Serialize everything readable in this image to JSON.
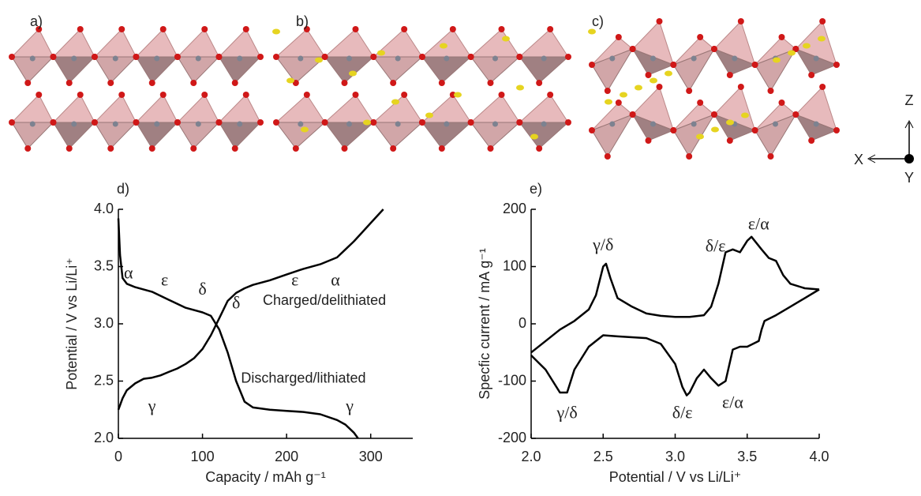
{
  "structure_panels": {
    "labels": [
      "a)",
      "b)",
      "c)"
    ],
    "axis_labels": [
      "Z",
      "X",
      "Y"
    ]
  },
  "chart_data": [
    {
      "type": "line",
      "label": "d)",
      "xlabel": "Capacity / mAh g⁻¹",
      "ylabel": "Potential / V vs Li/Li⁺",
      "xlim": [
        0,
        350
      ],
      "xticks": [
        0,
        100,
        200,
        300
      ],
      "ylim": [
        2,
        4
      ],
      "yticks": [
        {
          "value": 2,
          "label": "2.0"
        },
        {
          "value": 2.5,
          "label": "2.5"
        },
        {
          "value": 3,
          "label": "3.0"
        },
        {
          "value": 3.5,
          "label": "3.5"
        },
        {
          "value": 4,
          "label": "4.0"
        }
      ],
      "series": [
        {
          "color": "#000000",
          "x": [
            0,
            5,
            10,
            20,
            30,
            40,
            50,
            60,
            70,
            80,
            90,
            100,
            110,
            120,
            130,
            140,
            150,
            160,
            180,
            200,
            220,
            240,
            260,
            270,
            280,
            290,
            300,
            315
          ],
          "values": [
            2.25,
            2.35,
            2.42,
            2.48,
            2.52,
            2.53,
            2.55,
            2.58,
            2.61,
            2.65,
            2.7,
            2.78,
            2.9,
            3.05,
            3.2,
            3.27,
            3.31,
            3.34,
            3.38,
            3.43,
            3.48,
            3.52,
            3.58,
            3.65,
            3.72,
            3.8,
            3.88,
            4.0
          ]
        },
        {
          "color": "#000000",
          "x": [
            0,
            2,
            5,
            10,
            20,
            40,
            60,
            80,
            100,
            110,
            120,
            130,
            140,
            150,
            160,
            180,
            200,
            220,
            240,
            260,
            270,
            280,
            285
          ],
          "values": [
            3.92,
            3.6,
            3.4,
            3.35,
            3.32,
            3.28,
            3.21,
            3.14,
            3.1,
            3.07,
            2.95,
            2.75,
            2.5,
            2.32,
            2.27,
            2.25,
            2.24,
            2.23,
            2.21,
            2.16,
            2.12,
            2.05,
            2.0
          ]
        }
      ],
      "annotations": [
        "α",
        "ε",
        "δ",
        "δ",
        "ε",
        "α",
        "γ",
        "γ",
        "Charged/delithiated",
        "Discharged/lithiated"
      ]
    },
    {
      "type": "line",
      "label": "e)",
      "xlabel": "Potential / V vs Li/Li⁺",
      "ylabel": "Specfic current / mA g⁻¹",
      "xlim": [
        2,
        4
      ],
      "xticks": [
        {
          "value": 2,
          "label": "2.0"
        },
        {
          "value": 2.5,
          "label": "2.5"
        },
        {
          "value": 3,
          "label": "3.0"
        },
        {
          "value": 3.5,
          "label": "3.5"
        },
        {
          "value": 4,
          "label": "4.0"
        }
      ],
      "ylim": [
        -200,
        200
      ],
      "yticks": [
        -200,
        -100,
        0,
        100,
        200
      ],
      "series": [
        {
          "color": "#000000",
          "x": [
            2.0,
            2.1,
            2.2,
            2.3,
            2.4,
            2.45,
            2.5,
            2.52,
            2.55,
            2.6,
            2.7,
            2.8,
            2.9,
            3.0,
            3.1,
            3.2,
            3.25,
            3.3,
            3.35,
            3.4,
            3.45,
            3.5,
            3.53,
            3.6,
            3.65,
            3.7,
            3.75,
            3.8,
            3.9,
            4.0
          ],
          "values": [
            -50,
            -30,
            -10,
            5,
            25,
            50,
            100,
            105,
            80,
            45,
            30,
            18,
            14,
            12,
            12,
            15,
            30,
            70,
            125,
            130,
            125,
            145,
            152,
            130,
            115,
            110,
            85,
            70,
            62,
            60
          ]
        },
        {
          "color": "#000000",
          "x": [
            4.0,
            3.9,
            3.8,
            3.7,
            3.62,
            3.6,
            3.58,
            3.5,
            3.45,
            3.4,
            3.35,
            3.3,
            3.25,
            3.2,
            3.15,
            3.1,
            3.08,
            3.05,
            3.0,
            2.9,
            2.8,
            2.6,
            2.5,
            2.4,
            2.35,
            2.3,
            2.25,
            2.2,
            2.15,
            2.1,
            2.0
          ],
          "values": [
            60,
            45,
            30,
            15,
            5,
            -10,
            -30,
            -40,
            -40,
            -45,
            -100,
            -108,
            -95,
            -80,
            -95,
            -120,
            -125,
            -110,
            -70,
            -35,
            -25,
            -22,
            -20,
            -40,
            -60,
            -80,
            -120,
            -120,
            -100,
            -80,
            -55
          ]
        }
      ],
      "annotations": [
        "γ/δ",
        "δ/ε",
        "ε/α",
        "γ/δ",
        "δ/ε",
        "ε/α"
      ]
    }
  ]
}
